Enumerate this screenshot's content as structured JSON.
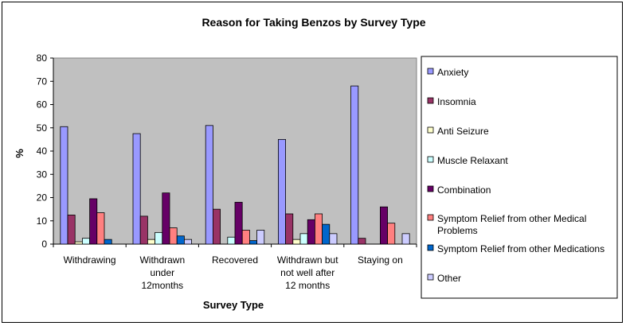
{
  "chart_data": {
    "type": "bar",
    "title": "Reason for Taking Benzos by Survey Type",
    "xlabel": "Survey Type",
    "ylabel": "%",
    "ylim": [
      0,
      80
    ],
    "yticks": [
      0,
      10,
      20,
      30,
      40,
      50,
      60,
      70,
      80
    ],
    "grid": false,
    "legend_position": "right",
    "categories": [
      [
        "Withdrawing"
      ],
      [
        "Withdrawn",
        "under",
        "12months"
      ],
      [
        "Recovered"
      ],
      [
        "Withdrawn but",
        "not well after",
        "12 months"
      ],
      [
        "Staying on"
      ]
    ],
    "series": [
      {
        "name": "Anxiety",
        "color": "#9999ff",
        "values": [
          50.5,
          47.5,
          51,
          45,
          68
        ]
      },
      {
        "name": "Insomnia",
        "color": "#993366",
        "values": [
          12.5,
          12,
          15,
          13,
          2.5
        ]
      },
      {
        "name": "Anti Seizure",
        "color": "#ffffcc",
        "values": [
          1,
          2,
          0,
          2,
          0
        ]
      },
      {
        "name": "Muscle Relaxant",
        "color": "#ccffff",
        "values": [
          2.5,
          5,
          3,
          4.5,
          0
        ]
      },
      {
        "name": "Combination",
        "color": "#660066",
        "values": [
          19.5,
          22,
          18,
          10.5,
          16
        ]
      },
      {
        "name": "Symptom Relief from other Medical Problems",
        "color": "#ff8080",
        "values": [
          13.5,
          7,
          6,
          13,
          9
        ]
      },
      {
        "name": "Symptom Relief from other Medications",
        "color": "#0066cc",
        "values": [
          2,
          3.5,
          1.5,
          8.5,
          0
        ]
      },
      {
        "name": "Other",
        "color": "#ccccff",
        "values": [
          0,
          2,
          6,
          4.5,
          4.5
        ]
      }
    ],
    "legend_labels": [
      [
        "Anxiety"
      ],
      [
        "Insomnia"
      ],
      [
        "Anti Seizure"
      ],
      [
        "Muscle Relaxant"
      ],
      [
        "Combination"
      ],
      [
        "Symptom Relief from other Medical",
        "Problems"
      ],
      [
        "Symptom Relief from other Medications"
      ],
      [
        "Other"
      ]
    ],
    "colors": {
      "plot_background": "#c0c0c0",
      "axis": "#000000"
    }
  }
}
